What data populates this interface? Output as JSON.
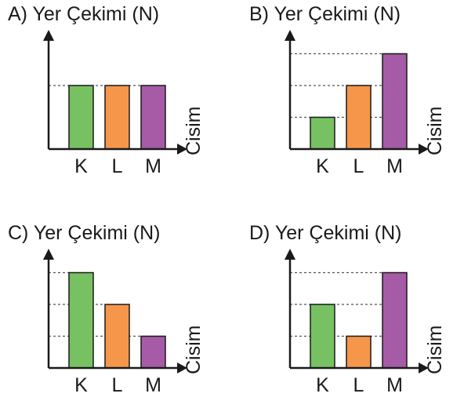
{
  "colors": {
    "K": "#77c162",
    "L": "#f5964a",
    "M": "#a55ba6"
  },
  "chart_data": [
    {
      "type": "bar",
      "title": "A) Yer Çekimi (N)",
      "xlabel": "Cisim",
      "ylabel": "",
      "categories": [
        "K",
        "L",
        "M"
      ],
      "values": [
        2,
        2,
        2
      ],
      "ylim": [
        0,
        3
      ],
      "guides": "dashed"
    },
    {
      "type": "bar",
      "title": "B) Yer Çekimi (N)",
      "xlabel": "Cisim",
      "ylabel": "",
      "categories": [
        "K",
        "L",
        "M"
      ],
      "values": [
        1,
        2,
        3
      ],
      "ylim": [
        0,
        3
      ],
      "guides": "dashed"
    },
    {
      "type": "bar",
      "title": "C) Yer Çekimi (N)",
      "xlabel": "Cisim",
      "ylabel": "",
      "categories": [
        "K",
        "L",
        "M"
      ],
      "values": [
        3,
        2,
        1
      ],
      "ylim": [
        0,
        3
      ],
      "guides": "dashed"
    },
    {
      "type": "bar",
      "title": "D) Yer Çekimi (N)",
      "xlabel": "Cisim",
      "ylabel": "",
      "categories": [
        "K",
        "L",
        "M"
      ],
      "values": [
        2,
        1,
        3
      ],
      "ylim": [
        0,
        3
      ],
      "guides": "dashed"
    }
  ]
}
